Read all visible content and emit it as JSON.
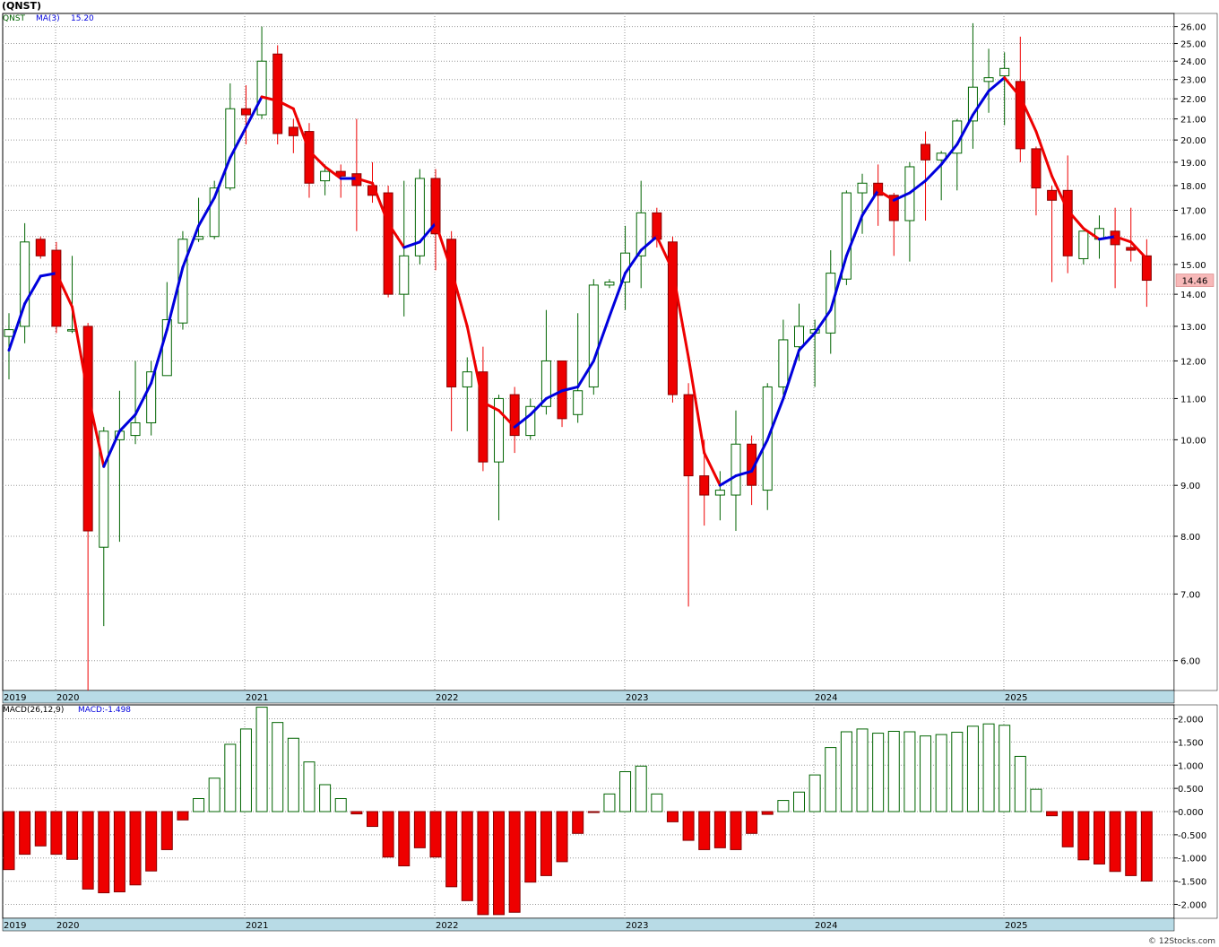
{
  "title": "(QNST)",
  "watermark": "© 12Stocks.com",
  "colors": {
    "up": "#006400",
    "down": "#ee0000",
    "ma_up": "#0000dd",
    "ma_down": "#ee0000",
    "axis_band": "#b8dbe6",
    "grid": "#9a9a9a"
  },
  "legend_price": {
    "symbol": "QNST",
    "ma_label": "MA(3)",
    "ma_value": "15.20"
  },
  "legend_macd": {
    "label": "MACD(26,12,9)",
    "value_label": "MACD:-1.498"
  },
  "last_price_label": "14.46",
  "chart_data": [
    {
      "type": "candlestick",
      "title": "(QNST)",
      "scale": "log",
      "ylim": [
        5.6,
        26.8
      ],
      "yticks": [
        "26.00",
        "25.00",
        "24.00",
        "23.00",
        "22.00",
        "21.00",
        "20.00",
        "19.00",
        "18.00",
        "17.00",
        "16.00",
        "15.00",
        "14.00",
        "13.00",
        "12.00",
        "11.00",
        "10.00",
        "9.00",
        "8.00",
        "7.00",
        "6.00"
      ],
      "x_year_labels": [
        "2019",
        "2020",
        "2021",
        "2022",
        "2023",
        "2024",
        "2025"
      ],
      "candles": [
        {
          "o": 12.7,
          "h": 13.4,
          "l": 11.5,
          "c": 12.9
        },
        {
          "o": 13.0,
          "h": 16.5,
          "l": 12.5,
          "c": 15.8
        },
        {
          "o": 15.9,
          "h": 16.0,
          "l": 15.2,
          "c": 15.3
        },
        {
          "o": 15.5,
          "h": 15.8,
          "l": 12.8,
          "c": 13.0
        },
        {
          "o": 12.9,
          "h": 15.3,
          "l": 12.8,
          "c": 12.9
        },
        {
          "o": 13.0,
          "h": 13.1,
          "l": 5.6,
          "c": 8.1
        },
        {
          "o": 7.8,
          "h": 10.3,
          "l": 6.5,
          "c": 10.2
        },
        {
          "o": 10.0,
          "h": 11.2,
          "l": 7.9,
          "c": 10.2
        },
        {
          "o": 10.1,
          "h": 12.0,
          "l": 9.9,
          "c": 10.4
        },
        {
          "o": 10.4,
          "h": 12.0,
          "l": 10.1,
          "c": 11.7
        },
        {
          "o": 11.6,
          "h": 14.4,
          "l": 11.6,
          "c": 13.2
        },
        {
          "o": 13.1,
          "h": 16.2,
          "l": 12.9,
          "c": 15.9
        },
        {
          "o": 15.9,
          "h": 17.5,
          "l": 15.8,
          "c": 16.0
        },
        {
          "o": 16.0,
          "h": 18.2,
          "l": 15.9,
          "c": 17.9
        },
        {
          "o": 17.9,
          "h": 22.8,
          "l": 17.8,
          "c": 21.5
        },
        {
          "o": 21.5,
          "h": 22.7,
          "l": 19.8,
          "c": 21.2
        },
        {
          "o": 21.2,
          "h": 26.0,
          "l": 21.0,
          "c": 24.0
        },
        {
          "o": 24.4,
          "h": 24.9,
          "l": 19.8,
          "c": 20.3
        },
        {
          "o": 20.6,
          "h": 21.0,
          "l": 19.4,
          "c": 20.2
        },
        {
          "o": 20.4,
          "h": 20.8,
          "l": 17.5,
          "c": 18.1
        },
        {
          "o": 18.2,
          "h": 18.9,
          "l": 17.6,
          "c": 18.6
        },
        {
          "o": 18.6,
          "h": 18.9,
          "l": 17.5,
          "c": 18.4
        },
        {
          "o": 18.5,
          "h": 21.0,
          "l": 16.2,
          "c": 18.0
        },
        {
          "o": 18.0,
          "h": 19.0,
          "l": 17.3,
          "c": 17.6
        },
        {
          "o": 17.7,
          "h": 18.0,
          "l": 13.9,
          "c": 14.0
        },
        {
          "o": 14.0,
          "h": 18.2,
          "l": 13.3,
          "c": 15.3
        },
        {
          "o": 15.3,
          "h": 18.7,
          "l": 15.0,
          "c": 18.3
        },
        {
          "o": 18.3,
          "h": 18.7,
          "l": 14.8,
          "c": 16.1
        },
        {
          "o": 15.9,
          "h": 16.2,
          "l": 10.2,
          "c": 11.3
        },
        {
          "o": 11.3,
          "h": 12.1,
          "l": 10.2,
          "c": 11.7
        },
        {
          "o": 11.7,
          "h": 12.4,
          "l": 9.3,
          "c": 9.5
        },
        {
          "o": 9.5,
          "h": 11.1,
          "l": 8.3,
          "c": 11.0
        },
        {
          "o": 11.1,
          "h": 11.3,
          "l": 9.7,
          "c": 10.1
        },
        {
          "o": 10.1,
          "h": 11.0,
          "l": 10.0,
          "c": 10.8
        },
        {
          "o": 10.8,
          "h": 13.5,
          "l": 10.6,
          "c": 12.0
        },
        {
          "o": 12.0,
          "h": 12.0,
          "l": 10.3,
          "c": 10.5
        },
        {
          "o": 10.6,
          "h": 13.4,
          "l": 10.4,
          "c": 11.2
        },
        {
          "o": 11.3,
          "h": 14.5,
          "l": 11.1,
          "c": 14.3
        },
        {
          "o": 14.3,
          "h": 14.5,
          "l": 14.2,
          "c": 14.4
        },
        {
          "o": 14.4,
          "h": 16.4,
          "l": 13.5,
          "c": 15.4
        },
        {
          "o": 15.3,
          "h": 18.2,
          "l": 14.2,
          "c": 16.9
        },
        {
          "o": 16.9,
          "h": 17.1,
          "l": 15.6,
          "c": 15.9
        },
        {
          "o": 15.8,
          "h": 16.0,
          "l": 10.9,
          "c": 11.1
        },
        {
          "o": 11.1,
          "h": 11.4,
          "l": 6.8,
          "c": 9.2
        },
        {
          "o": 9.2,
          "h": 10.0,
          "l": 8.2,
          "c": 8.8
        },
        {
          "o": 8.8,
          "h": 9.3,
          "l": 8.3,
          "c": 8.9
        },
        {
          "o": 8.8,
          "h": 10.7,
          "l": 8.1,
          "c": 9.9
        },
        {
          "o": 9.9,
          "h": 10.1,
          "l": 8.6,
          "c": 9.0
        },
        {
          "o": 8.9,
          "h": 11.4,
          "l": 8.5,
          "c": 11.3
        },
        {
          "o": 11.3,
          "h": 13.2,
          "l": 11.1,
          "c": 12.6
        },
        {
          "o": 12.4,
          "h": 13.7,
          "l": 12.0,
          "c": 13.0
        },
        {
          "o": 12.8,
          "h": 13.2,
          "l": 11.3,
          "c": 12.9
        },
        {
          "o": 12.8,
          "h": 15.5,
          "l": 12.2,
          "c": 14.7
        },
        {
          "o": 14.5,
          "h": 17.8,
          "l": 14.3,
          "c": 17.7
        },
        {
          "o": 17.7,
          "h": 18.5,
          "l": 16.1,
          "c": 18.1
        },
        {
          "o": 18.1,
          "h": 18.9,
          "l": 16.4,
          "c": 17.6
        },
        {
          "o": 17.6,
          "h": 17.7,
          "l": 15.3,
          "c": 16.6
        },
        {
          "o": 16.6,
          "h": 19.0,
          "l": 15.1,
          "c": 18.8
        },
        {
          "o": 19.8,
          "h": 20.4,
          "l": 16.6,
          "c": 19.1
        },
        {
          "o": 19.1,
          "h": 19.5,
          "l": 17.4,
          "c": 19.4
        },
        {
          "o": 19.4,
          "h": 21.0,
          "l": 17.8,
          "c": 20.9
        },
        {
          "o": 20.9,
          "h": 26.2,
          "l": 19.6,
          "c": 22.6
        },
        {
          "o": 22.9,
          "h": 24.7,
          "l": 21.3,
          "c": 23.1
        },
        {
          "o": 23.2,
          "h": 24.5,
          "l": 20.7,
          "c": 23.6
        },
        {
          "o": 22.9,
          "h": 25.4,
          "l": 19.0,
          "c": 19.6
        },
        {
          "o": 19.6,
          "h": 19.7,
          "l": 16.8,
          "c": 17.9
        },
        {
          "o": 17.8,
          "h": 18.0,
          "l": 14.4,
          "c": 17.4
        },
        {
          "o": 17.8,
          "h": 19.3,
          "l": 14.7,
          "c": 15.3
        },
        {
          "o": 15.2,
          "h": 16.2,
          "l": 15.0,
          "c": 16.2
        },
        {
          "o": 15.9,
          "h": 16.8,
          "l": 15.2,
          "c": 16.3
        },
        {
          "o": 16.2,
          "h": 17.1,
          "l": 14.2,
          "c": 15.7
        },
        {
          "o": 15.6,
          "h": 17.1,
          "l": 15.1,
          "c": 15.5
        },
        {
          "o": 15.3,
          "h": 15.9,
          "l": 13.6,
          "c": 14.46
        }
      ],
      "ma3": [
        12.3,
        13.7,
        14.6,
        14.7,
        13.6,
        11.1,
        9.4,
        10.2,
        10.6,
        11.4,
        12.9,
        14.9,
        16.4,
        17.5,
        19.2,
        20.6,
        22.1,
        21.9,
        21.5,
        19.5,
        18.8,
        18.3,
        18.3,
        18.1,
        16.5,
        15.6,
        15.8,
        16.5,
        14.8,
        13.0,
        10.9,
        10.7,
        10.3,
        10.6,
        11.0,
        11.2,
        11.3,
        12.0,
        13.3,
        14.7,
        15.5,
        16.0,
        14.8,
        12.1,
        9.7,
        9.0,
        9.2,
        9.3,
        10.0,
        11.0,
        12.3,
        12.8,
        13.5,
        15.3,
        16.8,
        17.8,
        17.4,
        17.7,
        18.2,
        18.9,
        19.8,
        21.2,
        22.4,
        23.1,
        22.1,
        20.4,
        18.4,
        17.0,
        16.3,
        15.9,
        16.0,
        15.8,
        15.2
      ],
      "ma_first_index": 0,
      "ma_last_value": "15.20"
    },
    {
      "type": "bar",
      "title": "MACD(26,12,9)",
      "ylim": [
        -2.3,
        2.3
      ],
      "yticks": [
        "2.000",
        "1.500",
        "1.000",
        "0.500",
        "0.000",
        "-0.500",
        "-1.000",
        "-1.500",
        "-2.000"
      ],
      "x_year_labels": [
        "2019",
        "2020",
        "2021",
        "2022",
        "2023",
        "2024",
        "2025"
      ],
      "values": [
        -1.25,
        -0.92,
        -0.74,
        -0.92,
        -1.03,
        -1.67,
        -1.75,
        -1.73,
        -1.58,
        -1.28,
        -0.82,
        -0.18,
        0.28,
        0.72,
        1.45,
        1.78,
        2.25,
        1.92,
        1.58,
        1.07,
        0.58,
        0.28,
        -0.05,
        -0.32,
        -0.98,
        -1.17,
        -0.78,
        -0.98,
        -1.62,
        -1.92,
        -2.22,
        -2.22,
        -2.17,
        -1.52,
        -1.38,
        -1.08,
        -0.47,
        -0.02,
        0.38,
        0.86,
        0.98,
        0.38,
        -0.22,
        -0.62,
        -0.82,
        -0.78,
        -0.82,
        -0.47,
        -0.06,
        0.24,
        0.42,
        0.79,
        1.38,
        1.72,
        1.78,
        1.69,
        1.73,
        1.72,
        1.63,
        1.66,
        1.71,
        1.84,
        1.89,
        1.86,
        1.19,
        0.48,
        -0.09,
        -0.76,
        -1.04,
        -1.13,
        -1.29,
        -1.38,
        -1.498
      ]
    }
  ]
}
